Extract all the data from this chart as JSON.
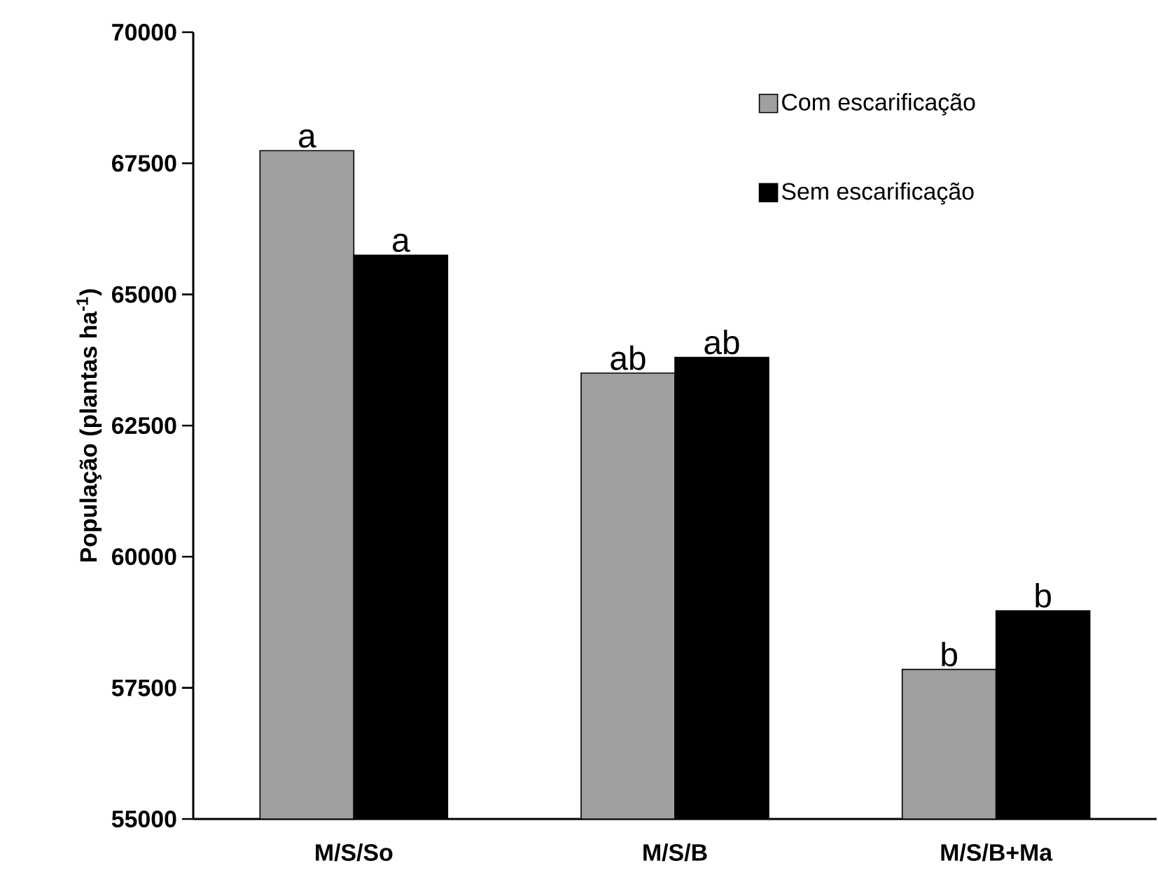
{
  "chart_data": {
    "type": "bar",
    "ylabel": "População (plantas ha$^{-1}$)",
    "categories": [
      "M/S/So",
      "M/S/B",
      "M/S/B+Ma"
    ],
    "series": [
      {
        "name": "Com escarificação",
        "color": "#a0a0a0",
        "values": [
          67740,
          63500,
          57850
        ],
        "value_labels": [
          "a",
          "ab",
          "b"
        ]
      },
      {
        "name": "Sem escarificação",
        "color": "#000000",
        "values": [
          65750,
          63800,
          58970
        ],
        "value_labels": [
          "a",
          "ab",
          "b"
        ]
      }
    ],
    "ylim": [
      55000,
      70000
    ],
    "yticks": [
      55000,
      57500,
      60000,
      62500,
      65000,
      67500,
      70000
    ],
    "grid": false,
    "legend": "top right"
  }
}
